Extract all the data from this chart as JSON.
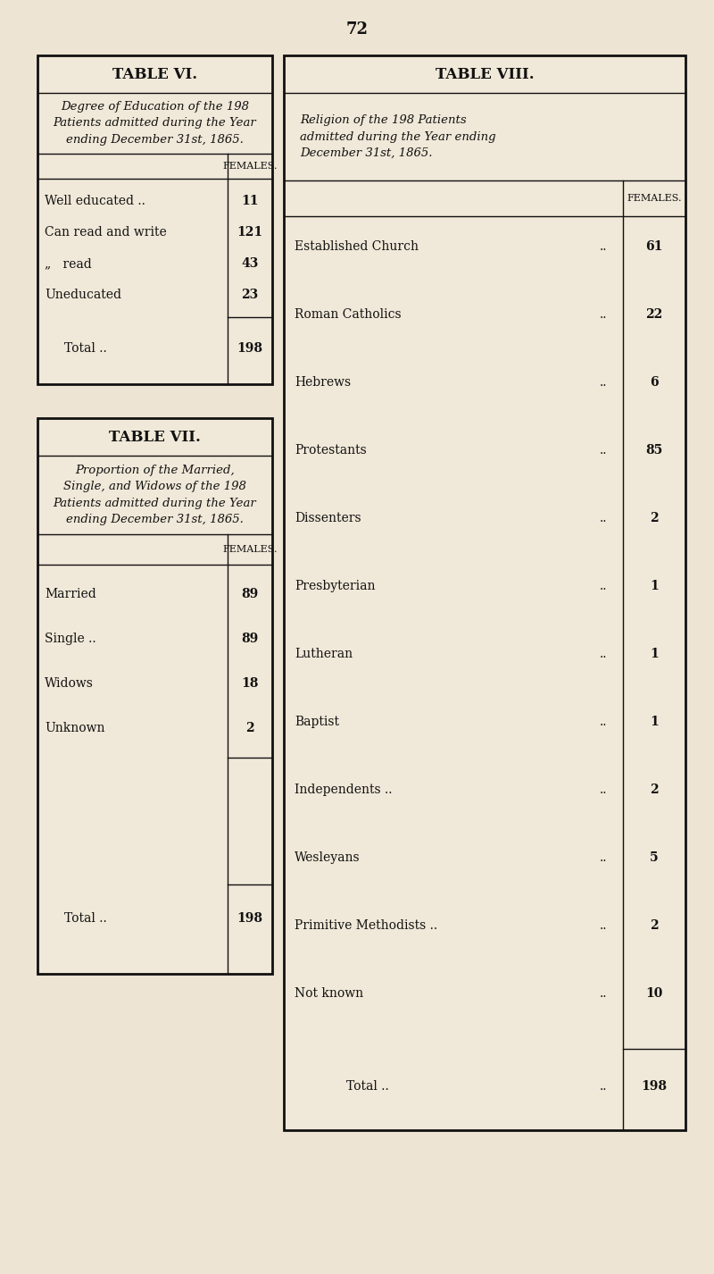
{
  "page_number": "72",
  "bg_color": "#ede4d3",
  "table_bg": "#f0e8d8",
  "border_color": "#111111",
  "text_color": "#111111",
  "table6": {
    "title": "TABLE VI.",
    "subtitle": "Degree of Education of the 198\nPatients admitted during the Year\nending December 31st, 1865.",
    "col_header": "FEMALES.",
    "rows": [
      [
        "Well educated ..",
        "..",
        "11"
      ],
      [
        "Can read and write",
        "..",
        "121"
      ],
      [
        "„   read",
        "..",
        "43"
      ],
      [
        "Uneducated",
        "..",
        "23"
      ]
    ],
    "total_label": "Total ..",
    "total_value": "198"
  },
  "table7": {
    "title": "TABLE VII.",
    "subtitle": "Proportion of the Married,\nSingle, and Widows of the 198\nPatients admitted during the Year\nending December 31st, 1865.",
    "col_header": "FEMALES.",
    "rows": [
      [
        "Married",
        "..",
        "89"
      ],
      [
        "Single ..",
        "..",
        "89"
      ],
      [
        "Widows",
        "..",
        "18"
      ],
      [
        "Unknown",
        "..",
        "2"
      ]
    ],
    "total_label": "Total ..",
    "total_value": "198"
  },
  "table8": {
    "title": "TABLE VIII.",
    "subtitle": "Religion of the 198 Patients\nadmitted during the Year ending\nDecember 31st, 1865.",
    "col_header": "FEMALES.",
    "rows": [
      [
        "Established Church",
        "..",
        "61"
      ],
      [
        "Roman Catholics",
        "..",
        "22"
      ],
      [
        "Hebrews",
        "..",
        "6"
      ],
      [
        "Protestants",
        "..",
        "85"
      ],
      [
        "Dissenters",
        "..",
        "2"
      ],
      [
        "Presbyterian",
        "..",
        "1"
      ],
      [
        "Lutheran",
        "..",
        "1"
      ],
      [
        "Baptist",
        "..",
        "1"
      ],
      [
        "Independents ..",
        "..",
        "2"
      ],
      [
        "Wesleyans",
        "..",
        "5"
      ],
      [
        "Primitive Methodists ..",
        "..",
        "2"
      ],
      [
        "Not known",
        "..",
        "10"
      ]
    ],
    "total_label": "Total ..",
    "total_value": "198"
  }
}
